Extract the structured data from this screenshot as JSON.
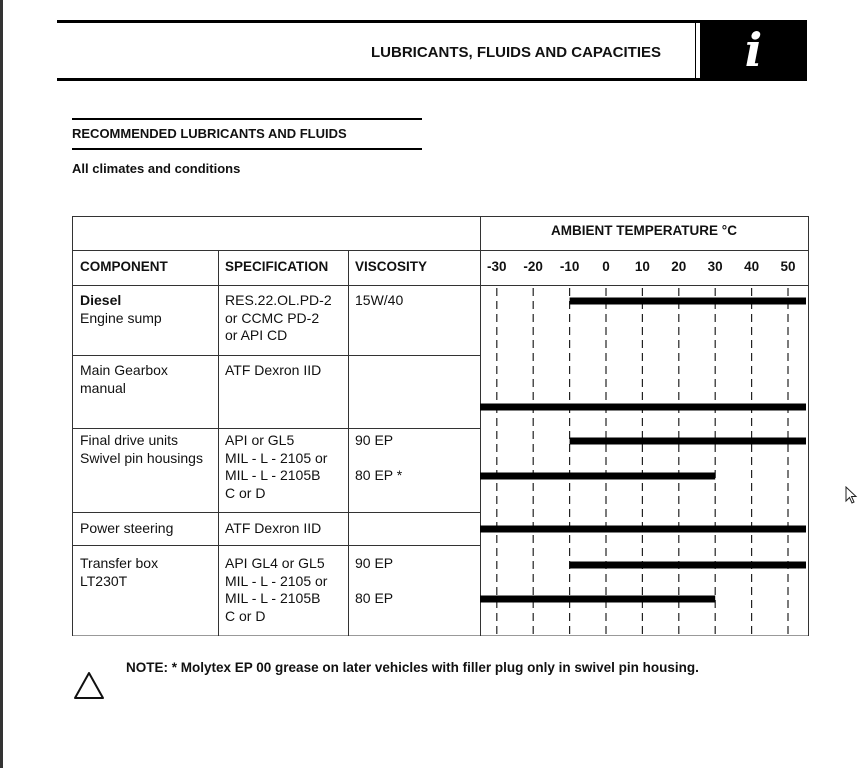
{
  "header": {
    "title": "LUBRICANTS, FLUIDS AND CAPACITIES",
    "icon": "info-icon",
    "icon_glyph": "i"
  },
  "section": {
    "title": "RECOMMENDED LUBRICANTS AND FLUIDS",
    "subtitle": "All climates and conditions"
  },
  "table": {
    "ambient_header": "AMBIENT TEMPERATURE °C",
    "columns": [
      "COMPONENT",
      "SPECIFICATION",
      "VISCOSITY"
    ],
    "temp_ticks": [
      "-30",
      "-20",
      "-10",
      "0",
      "10",
      "20",
      "30",
      "40",
      "50"
    ],
    "rows": [
      {
        "component_bold": "Diesel",
        "component": "Engine sump",
        "specification": "RES.22.OL.PD-2\nor CCMC PD-2\nor API CD",
        "viscosity": "15W/40"
      },
      {
        "component_bold": "",
        "component": "Main Gearbox\nmanual",
        "specification": "ATF Dexron IID",
        "viscosity": ""
      },
      {
        "component_bold": "",
        "component": "Final drive units\nSwivel pin housings",
        "specification": "API or GL5\nMIL - L - 2105 or\nMIL - L - 2105B\nC or D",
        "viscosity": "90 EP",
        "viscosity2": "80 EP *"
      },
      {
        "component_bold": "",
        "component": "Power steering",
        "specification": "ATF Dexron IID",
        "viscosity": ""
      },
      {
        "component_bold": "",
        "component": "Transfer box\nLT230T",
        "specification": "API GL4 or GL5\nMIL - L - 2105 or\nMIL - L - 2105B\nC or D",
        "viscosity": "90 EP",
        "viscosity2": "80 EP"
      }
    ]
  },
  "chart_data": {
    "type": "range-bar",
    "xlabel": "AMBIENT TEMPERATURE °C",
    "xticks": [
      -30,
      -20,
      -10,
      0,
      10,
      20,
      30,
      40,
      50
    ],
    "xlim": [
      -35,
      55
    ],
    "grid": true,
    "bars": [
      {
        "row": "Diesel Engine sump 15W/40",
        "from": -10,
        "to": 55
      },
      {
        "row": "Main Gearbox manual",
        "from": -35,
        "to": 55
      },
      {
        "row": "Final drive 90 EP",
        "from": -10,
        "to": 55
      },
      {
        "row": "Final drive 80 EP *",
        "from": -35,
        "to": 30
      },
      {
        "row": "Power steering",
        "from": -35,
        "to": 55
      },
      {
        "row": "Transfer box 90 EP",
        "from": -10,
        "to": 55
      },
      {
        "row": "Transfer box 80 EP",
        "from": -35,
        "to": 30
      }
    ]
  },
  "note": {
    "text": "NOTE: * Molytex EP 00 grease on later vehicles with filler plug only in swivel pin housing.",
    "icon": "warning-triangle-icon"
  }
}
